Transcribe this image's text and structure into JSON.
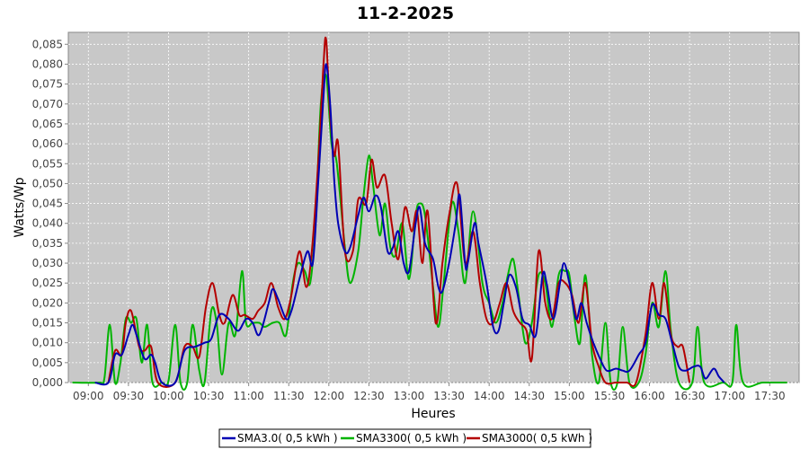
{
  "chart_data": {
    "type": "line",
    "title": "11-2-2025",
    "xlabel": "Heures",
    "ylabel": "Watts/Wp",
    "xlim": [
      "08:45",
      "17:52"
    ],
    "ylim": [
      0,
      0.088
    ],
    "x_ticks": [
      "09:00",
      "09:30",
      "10:00",
      "10:30",
      "11:00",
      "11:30",
      "12:00",
      "12:30",
      "13:00",
      "13:30",
      "14:00",
      "14:30",
      "15:00",
      "15:30",
      "16:00",
      "16:30",
      "17:00",
      "17:30"
    ],
    "y_ticks": [
      "0,000",
      "0,005",
      "0,010",
      "0,015",
      "0,020",
      "0,025",
      "0,030",
      "0,035",
      "0,040",
      "0,045",
      "0,050",
      "0,055",
      "0,060",
      "0,065",
      "0,070",
      "0,075",
      "0,080",
      "0,085"
    ],
    "grid": true,
    "legend_position": "bottom",
    "background": "#c8c8c8",
    "series": [
      {
        "name": "SMA3.0( 0,5 kWh )",
        "color": "#0000b4",
        "points": [
          [
            "09:05",
            0
          ],
          [
            "09:15",
            0
          ],
          [
            "09:20",
            0.007
          ],
          [
            "09:25",
            0.007
          ],
          [
            "09:30",
            0.012
          ],
          [
            "09:33",
            0.0145
          ],
          [
            "09:36",
            0.012
          ],
          [
            "09:42",
            0.006
          ],
          [
            "09:47",
            0.007
          ],
          [
            "09:50",
            0.005
          ],
          [
            "09:55",
            0
          ],
          [
            "10:05",
            0
          ],
          [
            "10:12",
            0.008
          ],
          [
            "10:20",
            0.009
          ],
          [
            "10:27",
            0.01
          ],
          [
            "10:32",
            0.011
          ],
          [
            "10:38",
            0.017
          ],
          [
            "10:45",
            0.016
          ],
          [
            "10:52",
            0.013
          ],
          [
            "10:58",
            0.016
          ],
          [
            "11:03",
            0.015
          ],
          [
            "11:08",
            0.012
          ],
          [
            "11:15",
            0.02
          ],
          [
            "11:18",
            0.0235
          ],
          [
            "11:22",
            0.021
          ],
          [
            "11:28",
            0.016
          ],
          [
            "11:32",
            0.018
          ],
          [
            "11:38",
            0.026
          ],
          [
            "11:44",
            0.033
          ],
          [
            "11:48",
            0.03
          ],
          [
            "11:52",
            0.05
          ],
          [
            "11:56",
            0.072
          ],
          [
            "11:58",
            0.08
          ],
          [
            "12:01",
            0.07
          ],
          [
            "12:04",
            0.051
          ],
          [
            "12:07",
            0.04
          ],
          [
            "12:12",
            0.033
          ],
          [
            "12:16",
            0.034
          ],
          [
            "12:22",
            0.042
          ],
          [
            "12:26",
            0.0465
          ],
          [
            "12:30",
            0.043
          ],
          [
            "12:35",
            0.047
          ],
          [
            "12:39",
            0.044
          ],
          [
            "12:44",
            0.033
          ],
          [
            "12:48",
            0.034
          ],
          [
            "12:52",
            0.038
          ],
          [
            "12:56",
            0.03
          ],
          [
            "13:00",
            0.028
          ],
          [
            "13:05",
            0.04
          ],
          [
            "13:08",
            0.044
          ],
          [
            "13:12",
            0.035
          ],
          [
            "13:18",
            0.031
          ],
          [
            "13:22",
            0.024
          ],
          [
            "13:25",
            0.023
          ],
          [
            "13:30",
            0.03
          ],
          [
            "13:35",
            0.04
          ],
          [
            "13:38",
            0.047
          ],
          [
            "13:42",
            0.03
          ],
          [
            "13:44",
            0.03
          ],
          [
            "13:49",
            0.04
          ],
          [
            "13:52",
            0.035
          ],
          [
            "13:58",
            0.025
          ],
          [
            "14:03",
            0.014
          ],
          [
            "14:07",
            0.013
          ],
          [
            "14:11",
            0.02
          ],
          [
            "14:15",
            0.027
          ],
          [
            "14:20",
            0.024
          ],
          [
            "14:25",
            0.016
          ],
          [
            "14:30",
            0.0145
          ],
          [
            "14:35",
            0.012
          ],
          [
            "14:40",
            0.027
          ],
          [
            "14:43",
            0.025
          ],
          [
            "14:48",
            0.016
          ],
          [
            "14:53",
            0.025
          ],
          [
            "14:56",
            0.03
          ],
          [
            "15:00",
            0.025
          ],
          [
            "15:05",
            0.016
          ],
          [
            "15:09",
            0.02
          ],
          [
            "15:13",
            0.015
          ],
          [
            "15:18",
            0.01
          ],
          [
            "15:23",
            0.006
          ],
          [
            "15:28",
            0.003
          ],
          [
            "15:35",
            0.0035
          ],
          [
            "15:40",
            0.003
          ],
          [
            "15:45",
            0.003
          ],
          [
            "15:52",
            0.007
          ],
          [
            "15:57",
            0.01
          ],
          [
            "16:02",
            0.0195
          ],
          [
            "16:07",
            0.017
          ],
          [
            "16:12",
            0.016
          ],
          [
            "16:17",
            0.01
          ],
          [
            "16:22",
            0.004
          ],
          [
            "16:27",
            0.003
          ],
          [
            "16:33",
            0.004
          ],
          [
            "16:38",
            0.004
          ],
          [
            "16:42",
            0.001
          ],
          [
            "16:48",
            0.0035
          ],
          [
            "16:52",
            0.0015
          ],
          [
            "16:56",
            0
          ]
        ]
      },
      {
        "name": "SMA3300( 0,5 kWh )",
        "color": "#00b400",
        "points": [
          [
            "08:48",
            0
          ],
          [
            "09:08",
            0
          ],
          [
            "09:12",
            0.001
          ],
          [
            "09:16",
            0.0145
          ],
          [
            "09:20",
            0
          ],
          [
            "09:24",
            0.005
          ],
          [
            "09:28",
            0.016
          ],
          [
            "09:32",
            0.015
          ],
          [
            "09:36",
            0.016
          ],
          [
            "09:40",
            0.005
          ],
          [
            "09:44",
            0.0145
          ],
          [
            "09:48",
            0
          ],
          [
            "09:55",
            0
          ],
          [
            "10:00",
            0.0005
          ],
          [
            "10:05",
            0.0145
          ],
          [
            "10:09",
            0
          ],
          [
            "10:14",
            0
          ],
          [
            "10:18",
            0.0145
          ],
          [
            "10:23",
            0.003
          ],
          [
            "10:27",
            0
          ],
          [
            "10:32",
            0.018
          ],
          [
            "10:36",
            0.015
          ],
          [
            "10:40",
            0.002
          ],
          [
            "10:45",
            0.015
          ],
          [
            "10:50",
            0.012
          ],
          [
            "10:55",
            0.028
          ],
          [
            "10:58",
            0.015
          ],
          [
            "11:03",
            0.015
          ],
          [
            "11:08",
            0.015
          ],
          [
            "11:12",
            0.014
          ],
          [
            "11:18",
            0.015
          ],
          [
            "11:23",
            0.015
          ],
          [
            "11:28",
            0.012
          ],
          [
            "11:33",
            0.025
          ],
          [
            "11:37",
            0.03
          ],
          [
            "11:42",
            0.028
          ],
          [
            "11:46",
            0.025
          ],
          [
            "11:50",
            0.04
          ],
          [
            "11:54",
            0.07
          ],
          [
            "11:58",
            0.077
          ],
          [
            "12:02",
            0.06
          ],
          [
            "12:06",
            0.055
          ],
          [
            "12:12",
            0.034
          ],
          [
            "12:16",
            0.025
          ],
          [
            "12:22",
            0.033
          ],
          [
            "12:26",
            0.047
          ],
          [
            "12:30",
            0.057
          ],
          [
            "12:33",
            0.05
          ],
          [
            "12:38",
            0.037
          ],
          [
            "12:42",
            0.045
          ],
          [
            "12:46",
            0.034
          ],
          [
            "12:50",
            0.032
          ],
          [
            "12:55",
            0.04
          ],
          [
            "13:00",
            0.026
          ],
          [
            "13:05",
            0.042
          ],
          [
            "13:08",
            0.045
          ],
          [
            "13:12",
            0.042
          ],
          [
            "13:18",
            0.024
          ],
          [
            "13:22",
            0.014
          ],
          [
            "13:26",
            0.025
          ],
          [
            "13:32",
            0.045
          ],
          [
            "13:37",
            0.038
          ],
          [
            "13:42",
            0.025
          ],
          [
            "13:48",
            0.043
          ],
          [
            "13:55",
            0.025
          ],
          [
            "14:00",
            0.02
          ],
          [
            "14:05",
            0.015
          ],
          [
            "14:10",
            0.02
          ],
          [
            "14:14",
            0.027
          ],
          [
            "14:18",
            0.031
          ],
          [
            "14:22",
            0.022
          ],
          [
            "14:27",
            0.01
          ],
          [
            "14:32",
            0.015
          ],
          [
            "14:37",
            0.027
          ],
          [
            "14:42",
            0.025
          ],
          [
            "14:47",
            0.014
          ],
          [
            "14:52",
            0.027
          ],
          [
            "14:57",
            0.028
          ],
          [
            "15:00",
            0.027
          ],
          [
            "15:04",
            0.016
          ],
          [
            "15:08",
            0.01
          ],
          [
            "15:12",
            0.027
          ],
          [
            "15:17",
            0.007
          ],
          [
            "15:22",
            0
          ],
          [
            "15:27",
            0.015
          ],
          [
            "15:31",
            0
          ],
          [
            "15:36",
            0
          ],
          [
            "15:40",
            0.014
          ],
          [
            "15:45",
            0
          ],
          [
            "15:52",
            0
          ],
          [
            "15:57",
            0.007
          ],
          [
            "16:02",
            0.02
          ],
          [
            "16:07",
            0.014
          ],
          [
            "16:12",
            0.028
          ],
          [
            "16:16",
            0.013
          ],
          [
            "16:22",
            0
          ],
          [
            "16:32",
            0
          ],
          [
            "16:36",
            0.014
          ],
          [
            "16:41",
            0
          ],
          [
            "16:55",
            0
          ],
          [
            "17:02",
            0
          ],
          [
            "17:05",
            0.0145
          ],
          [
            "17:10",
            0
          ],
          [
            "17:25",
            0
          ],
          [
            "17:43",
            0
          ]
        ]
      },
      {
        "name": "SMA3000( 0,5 kWh )",
        "color": "#b40000",
        "points": [
          [
            "09:15",
            0
          ],
          [
            "09:20",
            0.008
          ],
          [
            "09:25",
            0.007
          ],
          [
            "09:28",
            0.015
          ],
          [
            "09:32",
            0.018
          ],
          [
            "09:38",
            0.009
          ],
          [
            "09:42",
            0.008
          ],
          [
            "09:47",
            0.009
          ],
          [
            "09:52",
            0
          ],
          [
            "10:05",
            0
          ],
          [
            "10:12",
            0.009
          ],
          [
            "10:18",
            0.009
          ],
          [
            "10:23",
            0.0065
          ],
          [
            "10:28",
            0.019
          ],
          [
            "10:33",
            0.025
          ],
          [
            "10:38",
            0.017
          ],
          [
            "10:42",
            0.015
          ],
          [
            "10:48",
            0.022
          ],
          [
            "10:53",
            0.017
          ],
          [
            "10:57",
            0.017
          ],
          [
            "11:03",
            0.016
          ],
          [
            "11:07",
            0.018
          ],
          [
            "11:12",
            0.02
          ],
          [
            "11:17",
            0.025
          ],
          [
            "11:22",
            0.019
          ],
          [
            "11:27",
            0.016
          ],
          [
            "11:32",
            0.022
          ],
          [
            "11:38",
            0.033
          ],
          [
            "11:43",
            0.024
          ],
          [
            "11:47",
            0.032
          ],
          [
            "11:52",
            0.055
          ],
          [
            "11:56",
            0.08
          ],
          [
            "11:58",
            0.086
          ],
          [
            "12:01",
            0.067
          ],
          [
            "12:04",
            0.057
          ],
          [
            "12:07",
            0.06
          ],
          [
            "12:12",
            0.033
          ],
          [
            "12:18",
            0.033
          ],
          [
            "12:22",
            0.046
          ],
          [
            "12:28",
            0.045
          ],
          [
            "12:32",
            0.056
          ],
          [
            "12:36",
            0.049
          ],
          [
            "12:42",
            0.052
          ],
          [
            "12:47",
            0.04
          ],
          [
            "12:52",
            0.031
          ],
          [
            "12:57",
            0.044
          ],
          [
            "13:02",
            0.038
          ],
          [
            "13:06",
            0.043
          ],
          [
            "13:10",
            0.03
          ],
          [
            "13:14",
            0.043
          ],
          [
            "13:20",
            0.015
          ],
          [
            "13:25",
            0.03
          ],
          [
            "13:30",
            0.042
          ],
          [
            "13:36",
            0.05
          ],
          [
            "13:42",
            0.03
          ],
          [
            "13:48",
            0.038
          ],
          [
            "13:53",
            0.025
          ],
          [
            "13:58",
            0.016
          ],
          [
            "14:03",
            0.015
          ],
          [
            "14:08",
            0.02
          ],
          [
            "14:13",
            0.025
          ],
          [
            "14:18",
            0.018
          ],
          [
            "14:23",
            0.015
          ],
          [
            "14:28",
            0.013
          ],
          [
            "14:32",
            0.006
          ],
          [
            "14:37",
            0.033
          ],
          [
            "14:42",
            0.02
          ],
          [
            "14:47",
            0.016
          ],
          [
            "14:52",
            0.025
          ],
          [
            "14:57",
            0.025
          ],
          [
            "15:02",
            0.022
          ],
          [
            "15:07",
            0.015
          ],
          [
            "15:12",
            0.025
          ],
          [
            "15:17",
            0.01
          ],
          [
            "15:22",
            0.004
          ],
          [
            "15:27",
            0
          ],
          [
            "15:35",
            0
          ],
          [
            "15:43",
            0
          ],
          [
            "15:50",
            0
          ],
          [
            "15:57",
            0.012
          ],
          [
            "16:02",
            0.025
          ],
          [
            "16:07",
            0.016
          ],
          [
            "16:11",
            0.025
          ],
          [
            "16:16",
            0.012
          ],
          [
            "16:21",
            0.009
          ],
          [
            "16:25",
            0.009
          ],
          [
            "16:30",
            0
          ]
        ]
      }
    ]
  }
}
